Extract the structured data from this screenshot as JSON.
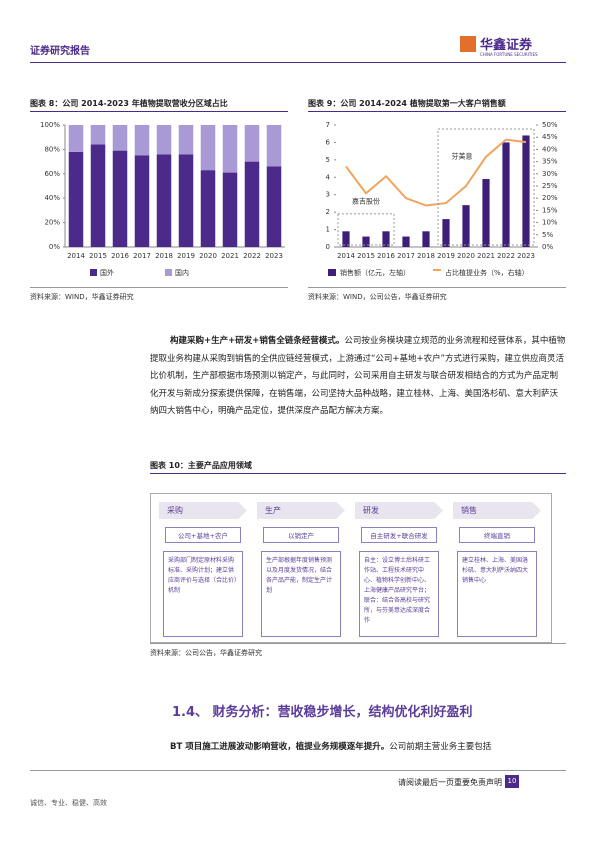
{
  "header": {
    "title": "证券研究报告",
    "brand": "华鑫证券",
    "brand_en": "CHINA FORTUNE SECURITIES"
  },
  "figures": [
    {
      "title": "图表 8：公司 2014-2023 年植物提取营收分区域占比",
      "source": "资料来源：WIND，华鑫证券研究"
    },
    {
      "title": "图表 9：公司 2014-2024 植物提取第一大客户销售额",
      "source": "资料来源：WIND，公司公告，华鑫证券研究"
    }
  ],
  "chart_data": [
    {
      "type": "stacked-bar",
      "categories": [
        "2014",
        "2015",
        "2016",
        "2017",
        "2018",
        "2019",
        "2020",
        "2021",
        "2022",
        "2023"
      ],
      "series": [
        {
          "name": "国外",
          "color": "#4b2a8a",
          "values": [
            78,
            84,
            79,
            75,
            76,
            76,
            63,
            61,
            70,
            66
          ]
        },
        {
          "name": "国内",
          "color": "#a99ad6",
          "values": [
            22,
            16,
            21,
            25,
            24,
            24,
            37,
            39,
            30,
            34
          ]
        }
      ],
      "ylim": [
        0,
        100
      ],
      "yticks": [
        {
          "value": 0,
          "label": "0%"
        },
        {
          "value": 20,
          "label": "20%"
        },
        {
          "value": 40,
          "label": "40%"
        },
        {
          "value": 60,
          "label": "60%"
        },
        {
          "value": 80,
          "label": "80%"
        },
        {
          "value": 100,
          "label": "100%"
        }
      ]
    },
    {
      "type": "bar-line",
      "categories": [
        "2014",
        "2015",
        "2016",
        "2017",
        "2018",
        "2019",
        "2020",
        "2021",
        "2022",
        "2023"
      ],
      "series": [
        {
          "name": "销售额（亿元，左轴）",
          "color": "#3d1f7a",
          "values": [
            0.9,
            0.6,
            0.9,
            0.6,
            0.9,
            1.6,
            2.4,
            3.9,
            6.0,
            6.4
          ]
        },
        {
          "name": "占比植提业务（%，右轴）",
          "color": "#f0a45e",
          "axis": "y2",
          "values": [
            33,
            22,
            29,
            20,
            17,
            18,
            25,
            37,
            44,
            43
          ]
        }
      ],
      "ylim": [
        0,
        7
      ],
      "yticks": [
        0,
        1,
        2,
        3,
        4,
        5,
        6,
        7
      ],
      "y2lim": [
        0,
        50
      ],
      "y2ticks": [
        {
          "value": 0,
          "label": "0%"
        },
        {
          "value": 5,
          "label": "5%"
        },
        {
          "value": 10,
          "label": "10%"
        },
        {
          "value": 15,
          "label": "15%"
        },
        {
          "value": 20,
          "label": "20%"
        },
        {
          "value": 25,
          "label": "25%"
        },
        {
          "value": 30,
          "label": "30%"
        },
        {
          "value": 35,
          "label": "35%"
        },
        {
          "value": 40,
          "label": "40%"
        },
        {
          "value": 45,
          "label": "45%"
        },
        {
          "value": 50,
          "label": "50%"
        }
      ],
      "annotations": [
        "嘉吉股份",
        "芬美意"
      ]
    }
  ],
  "paragraph": {
    "lead": "构建采购+生产+研发+销售全链条经营模式。",
    "body": "公司按业务模块建立规范的业务流程和经营体系，其中植物提取业务构建从采购到销售的全供应链经营模式，上游通过“公司+基地+农户”方式进行采购，建立供应商灵活比价机制，生产部根据市场预测以销定产，与此同时，公司采用自主研发与联合研发相结合的方式为产品定制化开发与新成分探索提供保障，在销售端，公司坚持大品种战略，建立桂林、上海、美国洛杉矶、意大利萨沃纳四大销售中心，明确产品定位，提供深度产品配方解决方案。"
  },
  "diagram": {
    "title": "图表 10：主要产品应用领域",
    "source": "资料来源：公司公告，华鑫证券研究",
    "columns": [
      {
        "head": "采购",
        "mode": "公司+基地+农户",
        "text": "采购部门制定原材料采购标准、采购计划；建立供应商评价与选择（合比价）机制"
      },
      {
        "head": "生产",
        "mode": "以销定产",
        "text": "生产部根据年度销售预测以及月度发货情况，结合各产品产能，制定生产计划"
      },
      {
        "head": "研发",
        "mode": "自主研发+联合研发",
        "text": "自主：设立博士后科研工作站、工程技术研究中心、植物科学创新中心、上海健康产品研究平台；联合：结合各高校与研究所，与芬美意达成深度合作"
      },
      {
        "head": "销售",
        "mode": "终端直销",
        "text": "建立桂林、上海、美国洛杉矶、意大利萨沃纳四大销售中心"
      }
    ]
  },
  "section": {
    "heading": "1.4、 财务分析：营收稳步增长，结构优化利好盈利",
    "lead": "BT 项目施工进展波动影响营收，植提业务规模逐年提升。",
    "body": "公司前期主营业务主要包括"
  },
  "footer": {
    "notice": "请阅读最后一页重要免责声明",
    "page": "10",
    "motto": "诚信、专业、稳健、高效"
  }
}
